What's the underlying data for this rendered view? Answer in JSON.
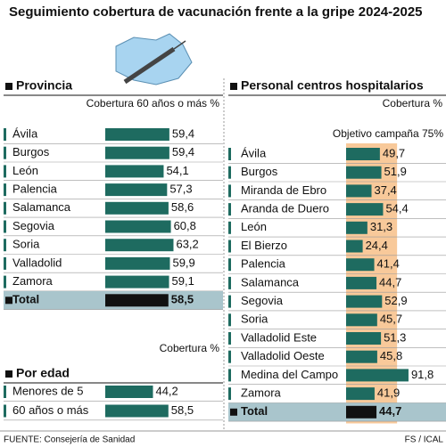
{
  "title": "Seguimiento cobertura de vacunación frente a la gripe 2024-2025",
  "source": "FUENTE: Consejería de Sanidad",
  "credit": "FS / ICAL",
  "chart_data": [
    {
      "type": "barh",
      "title": "Provincia",
      "subtitle": "Cobertura 60 años o más %",
      "color": "#1e6b60",
      "categories": [
        "Ávila",
        "Burgos",
        "León",
        "Palencia",
        "Salamanca",
        "Segovia",
        "Soria",
        "Valladolid",
        "Zamora"
      ],
      "values": [
        59.4,
        59.4,
        54.1,
        57.3,
        58.6,
        60.8,
        63.2,
        59.9,
        59.1
      ],
      "value_labels": [
        "59,4",
        "59,4",
        "54,1",
        "57,3",
        "58,6",
        "60,8",
        "63,2",
        "59,9",
        "59,1"
      ],
      "total": {
        "label": "Total",
        "value": 58.5,
        "value_label": "58,5",
        "color": "#111111"
      }
    },
    {
      "type": "barh",
      "title": "Por edad",
      "subtitle": "Cobertura %",
      "color": "#1e6b60",
      "categories": [
        "Menores de 5",
        "60 años o más"
      ],
      "values": [
        44.2,
        58.5
      ],
      "value_labels": [
        "44,2",
        "58,5"
      ]
    },
    {
      "type": "barh",
      "title": "Personal centros hospitalarios",
      "subtitle": "Cobertura %",
      "color": "#1e6b60",
      "annotation": "Objetivo campaña 75%",
      "target": 75,
      "target_color": "#f8c99a",
      "categories": [
        "Ávila",
        "Burgos",
        "Miranda de Ebro",
        "Aranda de Duero",
        "León",
        "El Bierzo",
        "Palencia",
        "Salamanca",
        "Segovia",
        "Soria",
        "Valladolid Este",
        "Valladolid Oeste",
        "Medina del Campo",
        "Zamora"
      ],
      "values": [
        49.7,
        51.9,
        37.4,
        54.4,
        31.3,
        24.4,
        41.4,
        44.7,
        52.9,
        45.7,
        51.3,
        45.8,
        91.8,
        41.9
      ],
      "value_labels": [
        "49,7",
        "51,9",
        "37,4",
        "54,4",
        "31,3",
        "24,4",
        "41,4",
        "44,7",
        "52,9",
        "45,7",
        "51,3",
        "45,8",
        "91,8",
        "41,9"
      ],
      "total": {
        "label": "Total",
        "value": 44.7,
        "value_label": "44,7",
        "color": "#111111"
      }
    }
  ]
}
